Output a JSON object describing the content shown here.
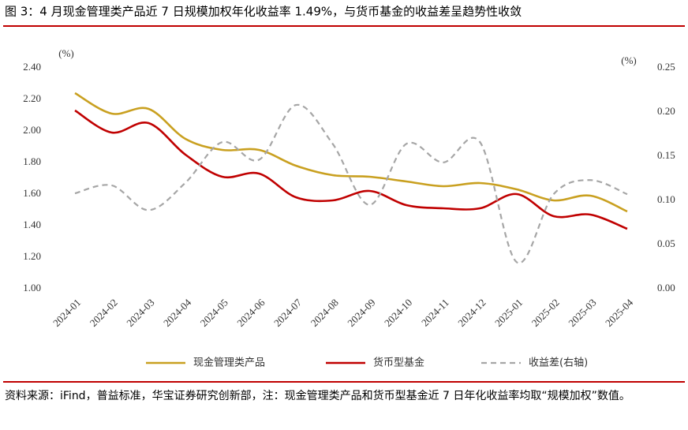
{
  "chart_data": {
    "type": "line",
    "title": "图 3：4 月现金管理类产品近 7 日规模加权年化收益率 1.49%，与货币基金的收益差呈趋势性收敛",
    "y_unit": "(%)",
    "y2_unit": "(%)",
    "categories": [
      "2024-01",
      "2024-02",
      "2024-03",
      "2024-04",
      "2024-05",
      "2024-06",
      "2024-07",
      "2024-08",
      "2024-09",
      "2024-10",
      "2024-11",
      "2024-12",
      "2025-01",
      "2025-02",
      "2025-03",
      "2025-04"
    ],
    "series": [
      {
        "name": "现金管理类产品",
        "color": "#c9a020",
        "values": [
          2.24,
          2.11,
          2.14,
          1.95,
          1.88,
          1.88,
          1.78,
          1.72,
          1.71,
          1.68,
          1.65,
          1.67,
          1.63,
          1.56,
          1.59,
          1.49
        ]
      },
      {
        "name": "货币型基金",
        "color": "#c00000",
        "values": [
          2.13,
          1.99,
          2.05,
          1.85,
          1.71,
          1.73,
          1.58,
          1.56,
          1.62,
          1.53,
          1.51,
          1.51,
          1.6,
          1.46,
          1.47,
          1.38
        ]
      },
      {
        "name": "收益差(右轴)",
        "color": "#a6a6a6",
        "dashed": true,
        "axis": "y2",
        "values": [
          0.108,
          0.117,
          0.089,
          0.12,
          0.166,
          0.146,
          0.208,
          0.164,
          0.095,
          0.164,
          0.143,
          0.166,
          0.03,
          0.107,
          0.123,
          0.107
        ]
      }
    ],
    "ylim": [
      1.0,
      2.4
    ],
    "yticks": [
      {
        "value": 1.0,
        "label": "1.00"
      },
      {
        "value": 1.2,
        "label": "1.20"
      },
      {
        "value": 1.4,
        "label": "1.40"
      },
      {
        "value": 1.6,
        "label": "1.60"
      },
      {
        "value": 1.8,
        "label": "1.80"
      },
      {
        "value": 2.0,
        "label": "2.00"
      },
      {
        "value": 2.2,
        "label": "2.20"
      },
      {
        "value": 2.4,
        "label": "2.40"
      }
    ],
    "y2lim": [
      0,
      0.25
    ],
    "y2ticks": [
      {
        "value": 0,
        "label": "0.00"
      },
      {
        "value": 0.05,
        "label": "0.05"
      },
      {
        "value": 0.1,
        "label": "0.10"
      },
      {
        "value": 0.15,
        "label": "0.15"
      },
      {
        "value": 0.2,
        "label": "0.20"
      },
      {
        "value": 0.25,
        "label": "0.25"
      }
    ],
    "grid": false,
    "note": "资料来源：iFind，普益标准，华宝证券研究创新部，注：现金管理类产品和货币型基金近 7 日年化收益率均取“规模加权”数值。"
  }
}
